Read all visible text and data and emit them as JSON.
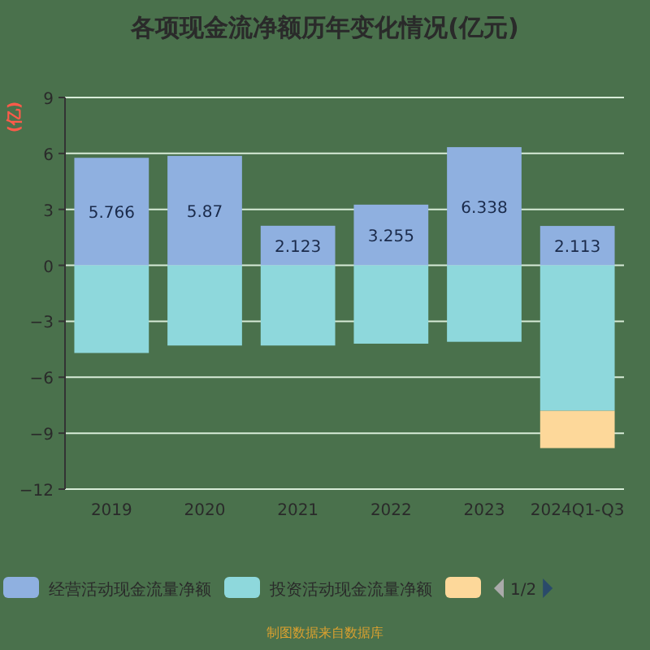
{
  "chart_data": {
    "type": "bar",
    "stacked": true,
    "title": "各项现金流净额历年变化情况(亿元)",
    "ylabel": "(亿)",
    "categories": [
      "2019",
      "2020",
      "2021",
      "2022",
      "2023",
      "2024Q1-Q3"
    ],
    "series": [
      {
        "name": "经营活动现金流量净额",
        "color": "#8fb0e0",
        "values": [
          5.766,
          5.87,
          2.123,
          3.255,
          6.338,
          2.113
        ],
        "value_labels": [
          "5.766",
          "5.87",
          "2.123",
          "3.255",
          "6.338",
          "2.113"
        ]
      },
      {
        "name": "投资活动现金流量净额",
        "color": "#8ed8dc",
        "values": [
          -4.7,
          -4.3,
          -4.3,
          -4.2,
          -4.1,
          -7.8
        ]
      },
      {
        "color": "#fdd89a",
        "values": [
          null,
          null,
          null,
          null,
          null,
          -2.0
        ]
      }
    ],
    "ylim": [
      -12,
      9
    ],
    "yticks": [
      -12,
      -9,
      -6,
      -3,
      0,
      3,
      6,
      9
    ],
    "grid": "y",
    "legend": "bottom",
    "annotations": [
      "1/2",
      "制图数据来自数据库"
    ]
  }
}
